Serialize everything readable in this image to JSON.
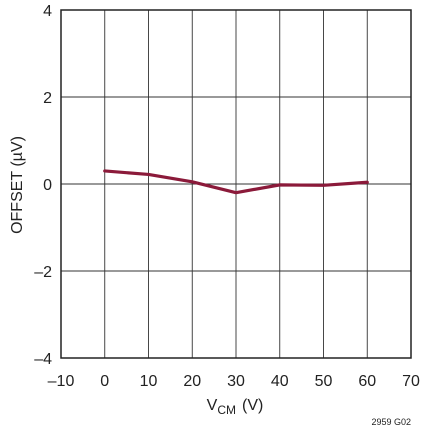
{
  "chart_data": {
    "type": "line",
    "xlabel_main": "V",
    "xlabel_sub": "CM",
    "xlabel_unit": "(V)",
    "ylabel": "OFFSET (µV)",
    "xlim": [
      -10,
      70
    ],
    "ylim": [
      -4,
      4
    ],
    "x_ticks": [
      -10,
      0,
      10,
      20,
      30,
      40,
      50,
      60,
      70
    ],
    "x_tick_labels": [
      "–10",
      "0",
      "10",
      "20",
      "30",
      "40",
      "50",
      "60",
      "70"
    ],
    "y_ticks": [
      -4,
      -2,
      0,
      2,
      4
    ],
    "y_tick_labels": [
      "–4",
      "–2",
      "0",
      "2",
      "4"
    ],
    "grid": true,
    "series": [
      {
        "color": "#8b1a3a",
        "x": [
          0,
          10,
          20,
          30,
          40,
          50,
          60
        ],
        "y": [
          0.3,
          0.22,
          0.05,
          -0.2,
          -0.02,
          -0.03,
          0.04
        ]
      }
    ],
    "note": "2959 G02"
  }
}
